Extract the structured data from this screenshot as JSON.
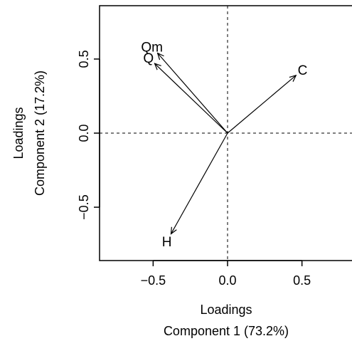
{
  "chart_data": {
    "type": "scatter",
    "title": "",
    "xlabel_line1": "Loadings",
    "xlabel_line2": "Component 1 (73.2%)",
    "ylabel_line1": "Loadings",
    "ylabel_line2": "Component 2 (17.2%)",
    "xlim": [
      -0.86,
      0.86
    ],
    "ylim": [
      -0.86,
      0.86
    ],
    "x_ticks": [
      -0.5,
      0.0,
      0.5
    ],
    "x_tick_labels": [
      "−0.5",
      "0.0",
      "0.5"
    ],
    "y_ticks": [
      -0.5,
      0.0,
      0.5
    ],
    "y_tick_labels": [
      "−0.5",
      "0.0",
      "0.5"
    ],
    "reference_lines": {
      "x": 0,
      "y": 0,
      "style": "dashed"
    },
    "grid": false,
    "vectors": [
      {
        "label": "Qm",
        "x": -0.47,
        "y": 0.54
      },
      {
        "label": "Q",
        "x": -0.49,
        "y": 0.47
      },
      {
        "label": "C",
        "x": 0.46,
        "y": 0.39
      },
      {
        "label": "H",
        "x": -0.38,
        "y": -0.68
      }
    ]
  }
}
